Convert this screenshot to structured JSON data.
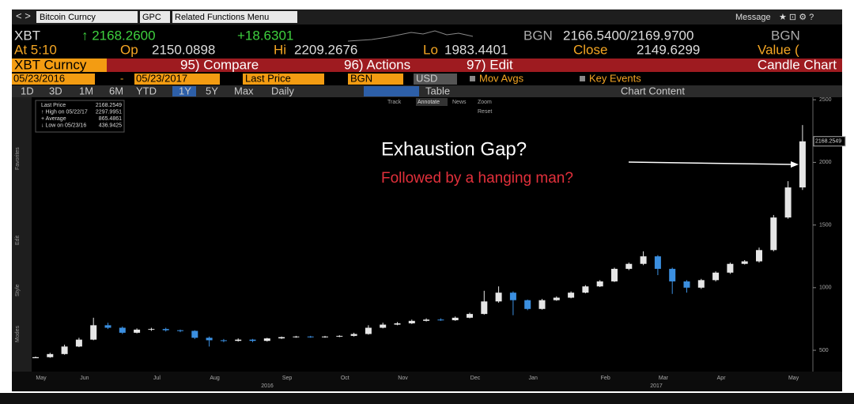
{
  "toolbar": {
    "security": "Bitcoin Curncy",
    "function": "GPC",
    "menu": "Related Functions Menu",
    "message": "Message"
  },
  "quote": {
    "ticker": "XBT",
    "last": "↑ 2168.2600",
    "change": "+18.6301",
    "source": "BGN",
    "bid_ask": "2166.5400/2169.9700",
    "source2": "BGN",
    "time": "At 5:10",
    "open_label": "Op",
    "open": "2150.0898",
    "high_label": "Hi",
    "high": "2209.2676",
    "low_label": "Lo",
    "low": "1983.4401",
    "close_label": "Close",
    "close": "2149.6299",
    "value_label": "Value ("
  },
  "menu_bar": [
    "XBT Curncy",
    "95) Compare",
    "96) Actions",
    "97) Edit",
    "Candle Chart"
  ],
  "settings": [
    "05/23/2016",
    "-",
    "05/23/2017",
    "Last Price",
    "BGN",
    "USD",
    "Mov Avgs",
    "Key Events"
  ],
  "periods": [
    "1D",
    "3D",
    "1M",
    "6M",
    "YTD",
    "1Y",
    "5Y",
    "Max",
    "Daily",
    "Table",
    "Chart Content"
  ],
  "chart_tools": [
    "Track",
    "Annotate",
    "News",
    "Zoom",
    "Reset"
  ],
  "side_labels": [
    "Favorites",
    "Edit",
    "Style",
    "Modes"
  ],
  "chart_data": {
    "type": "candlestick",
    "categories": [
      "May",
      null,
      null,
      "Jun",
      null,
      null,
      null,
      null,
      "Jul",
      null,
      null,
      null,
      "Aug",
      null,
      null,
      null,
      null,
      "Sep",
      null,
      null,
      null,
      "Oct",
      null,
      null,
      null,
      "Nov",
      null,
      null,
      null,
      null,
      "Dec",
      null,
      null,
      null,
      "Jan",
      null,
      null,
      null,
      null,
      "Feb",
      null,
      null,
      null,
      "Mar",
      null,
      null,
      null,
      "Apr",
      null,
      null,
      null,
      null,
      "May",
      null
    ],
    "years": [
      "2016",
      "2017"
    ],
    "open": [
      437,
      445,
      470,
      530,
      585,
      700,
      680,
      640,
      665,
      670,
      660,
      655,
      600,
      580,
      575,
      585,
      575,
      595,
      605,
      610,
      605,
      610,
      615,
      630,
      680,
      705,
      715,
      735,
      745,
      740,
      760,
      790,
      890,
      960,
      900,
      830,
      900,
      920,
      960,
      1010,
      1050,
      1150,
      1190,
      1250,
      1150,
      1050,
      1000,
      1060,
      1120,
      1190,
      1210,
      1300,
      1560,
      1800
    ],
    "high": [
      450,
      480,
      545,
      600,
      760,
      720,
      690,
      675,
      680,
      680,
      665,
      660,
      610,
      590,
      595,
      590,
      600,
      610,
      615,
      615,
      615,
      620,
      640,
      700,
      720,
      725,
      745,
      755,
      755,
      770,
      800,
      975,
      1010,
      970,
      905,
      910,
      930,
      970,
      1020,
      1060,
      1160,
      1200,
      1290,
      1260,
      1160,
      1060,
      1070,
      1130,
      1200,
      1220,
      1320,
      1580,
      1850,
      2298
    ],
    "low": [
      437,
      440,
      465,
      525,
      580,
      670,
      630,
      635,
      655,
      650,
      645,
      590,
      530,
      565,
      570,
      565,
      570,
      590,
      600,
      600,
      600,
      605,
      610,
      625,
      675,
      700,
      710,
      730,
      735,
      735,
      755,
      785,
      880,
      780,
      820,
      825,
      895,
      915,
      955,
      1005,
      1045,
      1140,
      1180,
      1100,
      950,
      960,
      990,
      1050,
      1110,
      1185,
      1200,
      1290,
      1550,
      1780
    ],
    "close": [
      445,
      470,
      530,
      585,
      700,
      680,
      640,
      665,
      670,
      660,
      655,
      600,
      580,
      575,
      585,
      575,
      595,
      605,
      610,
      605,
      610,
      615,
      630,
      680,
      705,
      715,
      735,
      745,
      740,
      760,
      790,
      890,
      960,
      900,
      830,
      900,
      920,
      960,
      1010,
      1050,
      1150,
      1190,
      1250,
      1150,
      1050,
      1000,
      1060,
      1120,
      1190,
      1210,
      1300,
      1560,
      1800,
      2168
    ],
    "up_color": "#e6e6e6",
    "down_color": "#3b8fe0",
    "ylim": [
      330,
      2520
    ],
    "yticks": [
      500,
      1000,
      1500,
      2000,
      2500
    ],
    "price_tag": 2168.2549,
    "legend": [
      {
        "label": "Last Price",
        "value": 2168.2549
      },
      {
        "label": "↑ High on 05/22/17",
        "value": 2297.9951
      },
      {
        "label": "+ Average",
        "value": 865.4861
      },
      {
        "label": "↓ Low on 05/23/16",
        "value": 436.9425
      }
    ],
    "annotations": [
      "Exhaustion Gap?",
      "Followed by a hanging man?"
    ]
  }
}
